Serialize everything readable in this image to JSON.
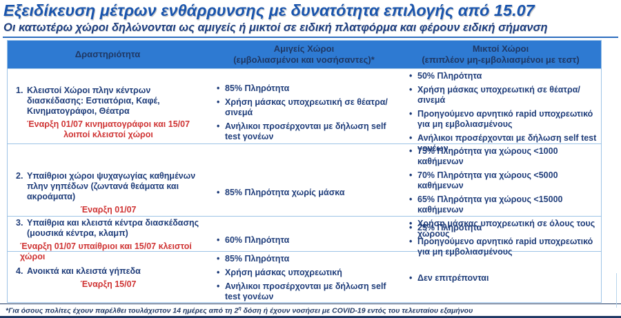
{
  "page": {
    "title": "Εξειδίκευση μέτρων ενθάρρυνσης με δυνατότητα επιλογής από 15.07",
    "subtitle": "Οι κατωτέρω χώροι δηλώνονται ως αμιγείς ή μικτοί σε ειδική πλατφόρμα και φέρουν ειδική σήμανση",
    "footnote": {
      "part1": "*Για όσους πολίτες έχουν παρέλθει τουλάχιστον 14 ημέρες από τη 2",
      "sup": "η",
      "part2": " δόση ή έχουν νοσήσει με COVID-19 εντός του τελευταίου εξαμήνου"
    }
  },
  "icons": {
    "bullet": "•"
  },
  "colors": {
    "header_bg": "#2e7ad2",
    "header_text": "#1f3864",
    "body_text": "#1f3d7a",
    "note_red": "#cf3434",
    "border_light": "#9dc3e6",
    "title_blue": "#1a55ad",
    "subtitle_blue": "#1e3f80",
    "rule_blue": "#2a6cbe",
    "footnote_navy": "#1f3864"
  },
  "table": {
    "headers": [
      {
        "title": "Δραστηριότητα",
        "subtitle": ""
      },
      {
        "title": "Αμιγείς Χώροι",
        "subtitle": "(εμβολιασμένοι και νοσήσαντες)*"
      },
      {
        "title": "Μικτοί Χώροι",
        "subtitle": "(επιπλέον μη-εμβολιασμένοι με τεστ)"
      }
    ],
    "rows": [
      {
        "number": "1.",
        "activity": "Κλειστοί Χώροι πλην κέντρων διασκέδασης: Εστιατόρια, Καφέ, Κινηματογράφοι, Θέατρα",
        "note": "Έναρξη 01/07 κινηματογράφοι και 15/07 λοιποί κλειστοί χώροι",
        "pure": [
          "85% Πληρότητα",
          "Χρήση μάσκας υποχρεωτική σε θέατρα/σινεμά",
          "Ανήλικοι προσέρχονται με δήλωση self test γονέων"
        ],
        "mixed": [
          "50% Πληρότητα",
          "Χρήση μάσκας υποχρεωτική σε θέατρα/σινεμά",
          "Προηγούμενο αρνητικό rapid υποχρεωτικό για μη εμβολιασμένους",
          "Ανήλικοι προσέρχονται με δήλωση self test γονέων"
        ]
      },
      {
        "number": "2.",
        "activity": "Υπαίθριοι χώροι ψυχαγωγίας καθημένων πλην γηπέδων (ζωντανά θεάματα και ακροάματα)",
        "note": "Έναρξη 01/07",
        "pure": [
          "85% Πληρότητα χωρίς μάσκα"
        ],
        "mixed": [
          "75% Πληρότητα για χώρους <1000 καθήμενων",
          "70% Πληρότητα για χώρους <5000 καθήμενων",
          "65% Πληρότητα για χώρους <15000 καθήμενων",
          "Χρήση μάσκας υποχρεωτική σε όλους τους χώρους"
        ]
      },
      {
        "number": "3.",
        "activity": "Υπαίθρια και κλειστά κέντρα διασκέδασης (μουσικά κέντρα, κλαμπ)",
        "note": "Έναρξη 01/07 υπαίθριοι και 15/07 κλειστοί χώροι",
        "pure": [
          "60% Πληρότητα"
        ],
        "mixed": [
          "25% Πληρότητα",
          "Προηγούμενο αρνητικό rapid υποχρεωτικό για μη εμβολιασμένους"
        ]
      },
      {
        "number": "4.",
        "activity": "Ανοικτά και κλειστά γήπεδα",
        "note": "Έναρξη 15/07",
        "pure": [
          "85% Πληρότητα",
          "Χρήση μάσκας υποχρεωτική",
          "Ανήλικοι προσέρχονται με δήλωση self test γονέων"
        ],
        "mixed": [
          "Δεν επιτρέπονται"
        ]
      }
    ]
  }
}
